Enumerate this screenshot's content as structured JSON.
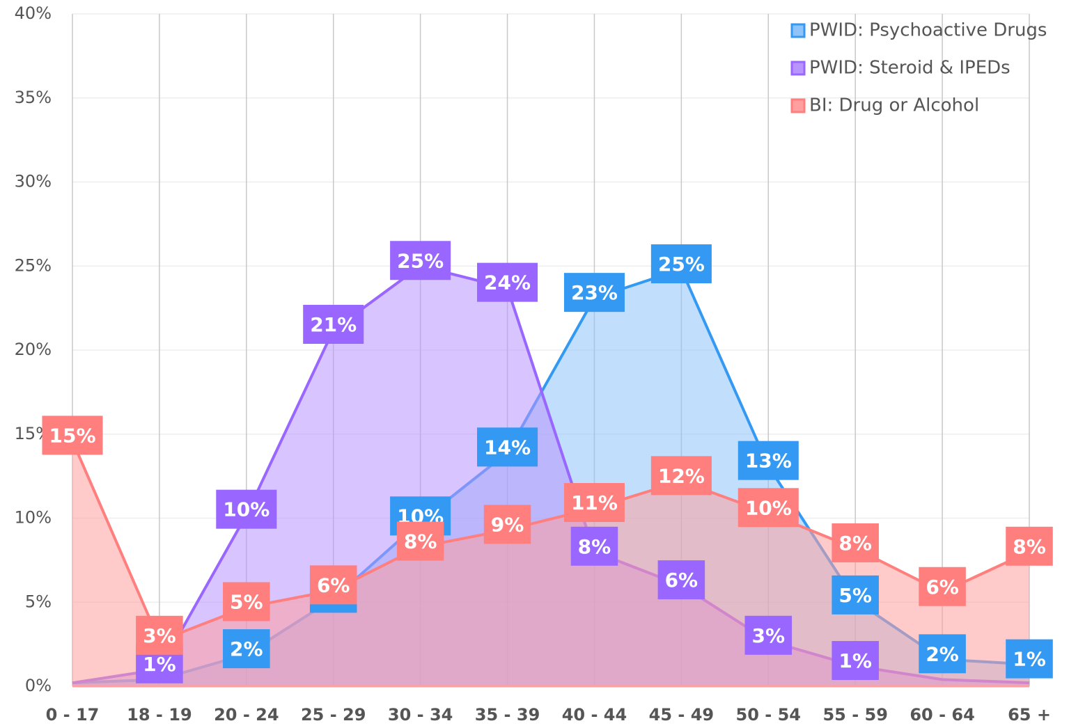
{
  "chart_data": {
    "type": "area",
    "categories": [
      "0 - 17",
      "18 - 19",
      "20 - 24",
      "25 - 29",
      "30 - 34",
      "35 - 39",
      "40 - 44",
      "45 - 49",
      "50 - 54",
      "55 - 59",
      "60 - 64",
      "65 +"
    ],
    "series": [
      {
        "name": "PWID: Psychoactive Drugs",
        "color": "#3399f3",
        "fill": "#8ec4fa",
        "values": [
          0.2,
          0.4,
          1.9,
          5.2,
          9.8,
          13.9,
          23.1,
          24.8,
          13.1,
          5.1,
          1.6,
          1.3
        ],
        "value_labels": [
          null,
          null,
          "2%",
          "5%",
          "10%",
          "14%",
          "23%",
          "25%",
          "13%",
          "5%",
          "2%",
          "1%"
        ]
      },
      {
        "name": "PWID: Steroid & IPEDs",
        "color": "#9966ff",
        "fill": "#b894fd",
        "values": [
          0.2,
          1.0,
          10.2,
          21.2,
          25.0,
          23.7,
          8.0,
          6.0,
          2.7,
          1.2,
          0.4,
          0.2
        ],
        "value_labels": [
          null,
          "1%",
          "10%",
          "21%",
          "25%",
          "24%",
          "8%",
          "6%",
          "3%",
          "1%",
          null,
          null
        ]
      },
      {
        "name": "BI: Drug or Alcohol",
        "color": "#ff7f7f",
        "fill": "#ff9f9f",
        "values": [
          14.6,
          2.7,
          4.7,
          5.7,
          8.3,
          9.3,
          10.6,
          12.2,
          10.3,
          8.2,
          5.6,
          8.0
        ],
        "value_labels": [
          "15%",
          "3%",
          "5%",
          "6%",
          "8%",
          "9%",
          "11%",
          "12%",
          "10%",
          "8%",
          "6%",
          "8%"
        ]
      }
    ],
    "ylim": [
      0,
      40
    ],
    "yticks": [
      {
        "value": 0,
        "label": "0%"
      },
      {
        "value": 5,
        "label": "5%"
      },
      {
        "value": 10,
        "label": "10%"
      },
      {
        "value": 15,
        "label": "15%"
      },
      {
        "value": 20,
        "label": "20%"
      },
      {
        "value": 25,
        "label": "25%"
      },
      {
        "value": 30,
        "label": "30%"
      },
      {
        "value": 35,
        "label": "35%"
      },
      {
        "value": 40,
        "label": "40%"
      }
    ],
    "grid": true,
    "legend": "top-right"
  }
}
